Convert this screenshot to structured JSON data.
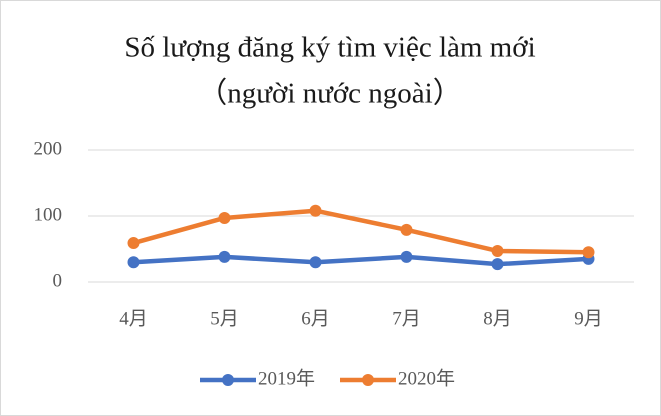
{
  "chart_data": {
    "type": "line",
    "title": "Số lượng đăng ký tìm việc làm mới",
    "subtitle": "（người nước ngoài）",
    "categories": [
      "4月",
      "5月",
      "6月",
      "7月",
      "8月",
      "9月"
    ],
    "series": [
      {
        "name": "2019年",
        "color": "#4472c4",
        "values": [
          30,
          38,
          30,
          38,
          27,
          35
        ]
      },
      {
        "name": "2020年",
        "color": "#ed7d31",
        "values": [
          59,
          97,
          108,
          79,
          47,
          45
        ]
      }
    ],
    "ylim": [
      0,
      200
    ],
    "yticks": [
      0,
      100,
      200
    ],
    "grid": true,
    "legend": "bottom"
  }
}
